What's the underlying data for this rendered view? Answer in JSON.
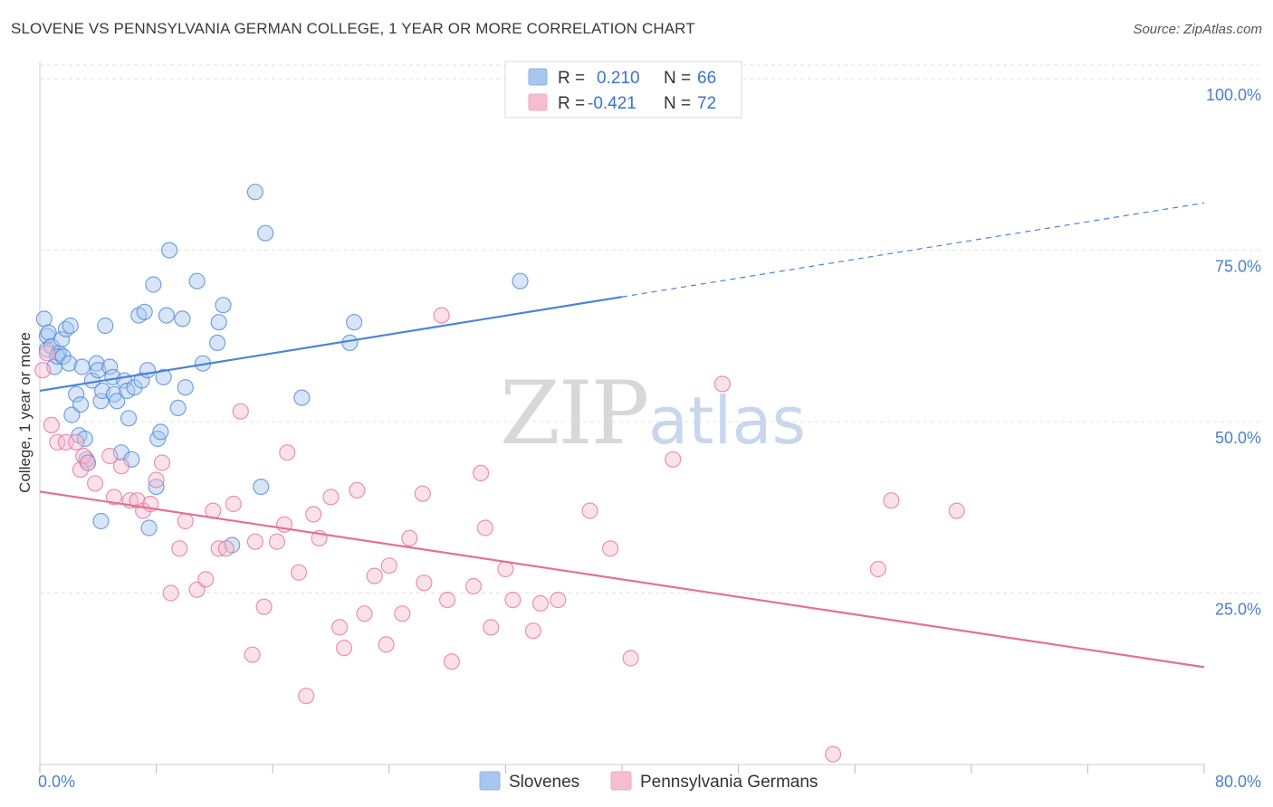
{
  "header": {
    "title": "SLOVENE VS PENNSYLVANIA GERMAN COLLEGE, 1 YEAR OR MORE CORRELATION CHART",
    "source": "Source: ZipAtlas.com"
  },
  "watermark": {
    "zip": "ZIP",
    "atlas": "atlas"
  },
  "legend_top": {
    "rows": [
      {
        "r_label": "R =",
        "r_value": "0.210",
        "n_label": "N =",
        "n_value": "66",
        "color": "#8db4e8"
      },
      {
        "r_label": "R =",
        "r_value": "-0.421",
        "n_label": "N =",
        "n_value": "72",
        "color": "#f3a9c0"
      }
    ]
  },
  "chart_data": {
    "type": "scatter",
    "title": "SLOVENE VS PENNSYLVANIA GERMAN COLLEGE, 1 YEAR OR MORE CORRELATION CHART",
    "xlabel": "",
    "ylabel": "College, 1 year or more",
    "xlim": [
      0,
      80
    ],
    "ylim": [
      0,
      102
    ],
    "x_tick_labels": [
      "0.0%",
      "80.0%"
    ],
    "y_ticks": [
      25,
      50,
      75,
      100
    ],
    "y_tick_labels": [
      "25.0%",
      "50.0%",
      "75.0%",
      "100.0%"
    ],
    "grid": true,
    "legend": [
      "Slovenes",
      "Pennsylvania Germans"
    ],
    "series": [
      {
        "name": "Slovenes",
        "color": "#4a84d8",
        "fill": "#a9c6ee",
        "r": 0.21,
        "n": 66,
        "trend": {
          "x0": 0,
          "y0": 54.5,
          "x1": 40,
          "y1": 68.2,
          "dash_to_x": 80,
          "dash_to_y": 81.9
        },
        "points": [
          [
            0.3,
            65
          ],
          [
            0.5,
            62.5
          ],
          [
            0.5,
            60.5
          ],
          [
            0.6,
            63
          ],
          [
            0.8,
            61
          ],
          [
            1,
            58
          ],
          [
            1.3,
            60
          ],
          [
            1.2,
            59.5
          ],
          [
            1.5,
            62
          ],
          [
            1.6,
            59.5
          ],
          [
            1.8,
            63.5
          ],
          [
            2,
            58.5
          ],
          [
            2.1,
            64
          ],
          [
            2.2,
            51
          ],
          [
            2.5,
            54
          ],
          [
            2.7,
            48
          ],
          [
            2.9,
            58
          ],
          [
            3.1,
            47.5
          ],
          [
            3.2,
            44.5
          ],
          [
            3.3,
            44
          ],
          [
            3.6,
            56
          ],
          [
            3.9,
            58.5
          ],
          [
            4,
            57.5
          ],
          [
            4.2,
            53
          ],
          [
            4.3,
            54.5
          ],
          [
            4.5,
            64
          ],
          [
            4.8,
            58
          ],
          [
            5,
            56.5
          ],
          [
            5.1,
            54
          ],
          [
            5.3,
            53
          ],
          [
            5.6,
            45.5
          ],
          [
            5.8,
            56
          ],
          [
            6,
            54.5
          ],
          [
            6.1,
            50.5
          ],
          [
            6.3,
            44.5
          ],
          [
            6.5,
            55
          ],
          [
            6.8,
            65.5
          ],
          [
            7,
            56
          ],
          [
            7.2,
            66
          ],
          [
            7.4,
            57.5
          ],
          [
            7.5,
            34.5
          ],
          [
            7.8,
            70
          ],
          [
            8,
            40.5
          ],
          [
            8.1,
            47.5
          ],
          [
            8.3,
            48.5
          ],
          [
            8.5,
            56.5
          ],
          [
            8.7,
            65.5
          ],
          [
            8.9,
            75
          ],
          [
            9.5,
            52
          ],
          [
            9.8,
            65
          ],
          [
            10,
            55
          ],
          [
            10.8,
            70.5
          ],
          [
            11.2,
            58.5
          ],
          [
            12.2,
            61.5
          ],
          [
            12.3,
            64.5
          ],
          [
            12.6,
            67
          ],
          [
            13.2,
            32
          ],
          [
            14.8,
            83.5
          ],
          [
            15.2,
            40.5
          ],
          [
            15.5,
            77.5
          ],
          [
            18,
            53.5
          ],
          [
            21.3,
            61.5
          ],
          [
            21.6,
            64.5
          ],
          [
            33,
            70.5
          ],
          [
            4.2,
            35.5
          ],
          [
            2.8,
            52.5
          ]
        ]
      },
      {
        "name": "Pennsylvania Germans",
        "color": "#e36f9a",
        "fill": "#f6bccf",
        "r": -0.421,
        "n": 72,
        "trend": {
          "x0": 0,
          "y0": 39.8,
          "x1": 80,
          "y1": 14.2
        },
        "points": [
          [
            0.2,
            57.5
          ],
          [
            0.5,
            60
          ],
          [
            0.8,
            49.5
          ],
          [
            1.2,
            47
          ],
          [
            1.8,
            47
          ],
          [
            2.5,
            47
          ],
          [
            2.8,
            43
          ],
          [
            3,
            45
          ],
          [
            3.3,
            44
          ],
          [
            3.8,
            41
          ],
          [
            4.8,
            45
          ],
          [
            5.1,
            39
          ],
          [
            5.6,
            43.5
          ],
          [
            6.2,
            38.5
          ],
          [
            6.7,
            38.5
          ],
          [
            7.1,
            37
          ],
          [
            7.6,
            38
          ],
          [
            8,
            41.5
          ],
          [
            8.4,
            44
          ],
          [
            9,
            25
          ],
          [
            9.6,
            31.5
          ],
          [
            10,
            35.5
          ],
          [
            10.8,
            25.5
          ],
          [
            11.4,
            27
          ],
          [
            11.9,
            37
          ],
          [
            12.3,
            31.5
          ],
          [
            12.8,
            31.5
          ],
          [
            13.3,
            38
          ],
          [
            13.8,
            51.5
          ],
          [
            14.6,
            16
          ],
          [
            14.8,
            32.5
          ],
          [
            15.4,
            23
          ],
          [
            16.3,
            32.5
          ],
          [
            16.8,
            35
          ],
          [
            17,
            45.5
          ],
          [
            17.8,
            28
          ],
          [
            18.3,
            10
          ],
          [
            18.8,
            36.5
          ],
          [
            19.2,
            33
          ],
          [
            20,
            39
          ],
          [
            20.6,
            20
          ],
          [
            20.9,
            17
          ],
          [
            21.8,
            40
          ],
          [
            22.3,
            22
          ],
          [
            23,
            27.5
          ],
          [
            23.8,
            17.5
          ],
          [
            24,
            29
          ],
          [
            24.9,
            22
          ],
          [
            25.4,
            33
          ],
          [
            26.3,
            39.5
          ],
          [
            26.4,
            26.5
          ],
          [
            27.6,
            65.5
          ],
          [
            28,
            24
          ],
          [
            28.3,
            15
          ],
          [
            29.8,
            26
          ],
          [
            30.3,
            42.5
          ],
          [
            30.6,
            34.5
          ],
          [
            31,
            20
          ],
          [
            32,
            28.5
          ],
          [
            32.5,
            24
          ],
          [
            33.9,
            19.5
          ],
          [
            34.4,
            23.5
          ],
          [
            35.6,
            24
          ],
          [
            37.8,
            37
          ],
          [
            39.2,
            31.5
          ],
          [
            40.6,
            15.5
          ],
          [
            43.5,
            44.5
          ],
          [
            46.9,
            55.5
          ],
          [
            54.5,
            1.5
          ],
          [
            57.6,
            28.5
          ],
          [
            58.5,
            38.5
          ],
          [
            63,
            37
          ]
        ]
      }
    ]
  }
}
